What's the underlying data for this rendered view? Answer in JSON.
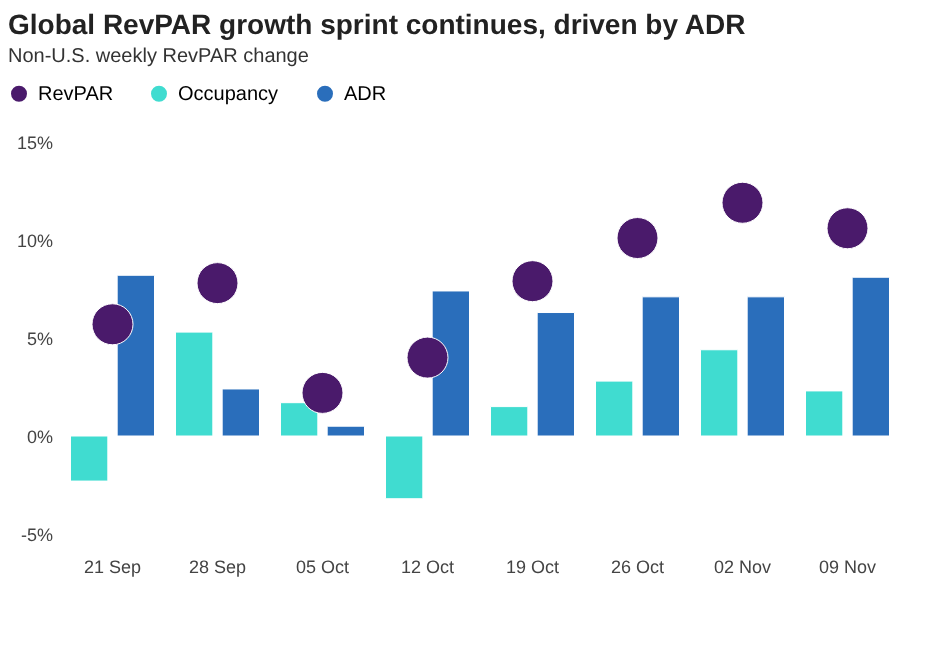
{
  "chart_data": {
    "type": "bar",
    "title": "Global RevPAR growth sprint continues, driven by ADR",
    "subtitle": "Non-U.S. weekly RevPAR change",
    "categories": [
      "21 Sep",
      "28 Sep",
      "05 Oct",
      "12 Oct",
      "19 Oct",
      "26 Oct",
      "02 Nov",
      "09 Nov"
    ],
    "series": [
      {
        "name": "RevPAR",
        "type": "scatter",
        "color": "#4a1a6b",
        "values": [
          5.7,
          7.8,
          2.2,
          4.0,
          7.9,
          10.1,
          11.9,
          10.6
        ]
      },
      {
        "name": "Occupancy",
        "color": "#40dcd0",
        "values": [
          -2.3,
          5.3,
          1.7,
          -3.2,
          1.5,
          2.8,
          4.4,
          2.3
        ]
      },
      {
        "name": "ADR",
        "color": "#2a6ebb",
        "values": [
          8.2,
          2.4,
          0.5,
          7.4,
          6.3,
          7.1,
          7.1,
          8.1
        ]
      }
    ],
    "ylim": [
      -5,
      15
    ],
    "yticks": [
      {
        "value": -5,
        "label": "-5%"
      },
      {
        "value": 0,
        "label": "0%"
      },
      {
        "value": 5,
        "label": "5%"
      },
      {
        "value": 10,
        "label": "10%"
      },
      {
        "value": 15,
        "label": "15%"
      }
    ],
    "marker": "circle",
    "legend": "top left"
  }
}
